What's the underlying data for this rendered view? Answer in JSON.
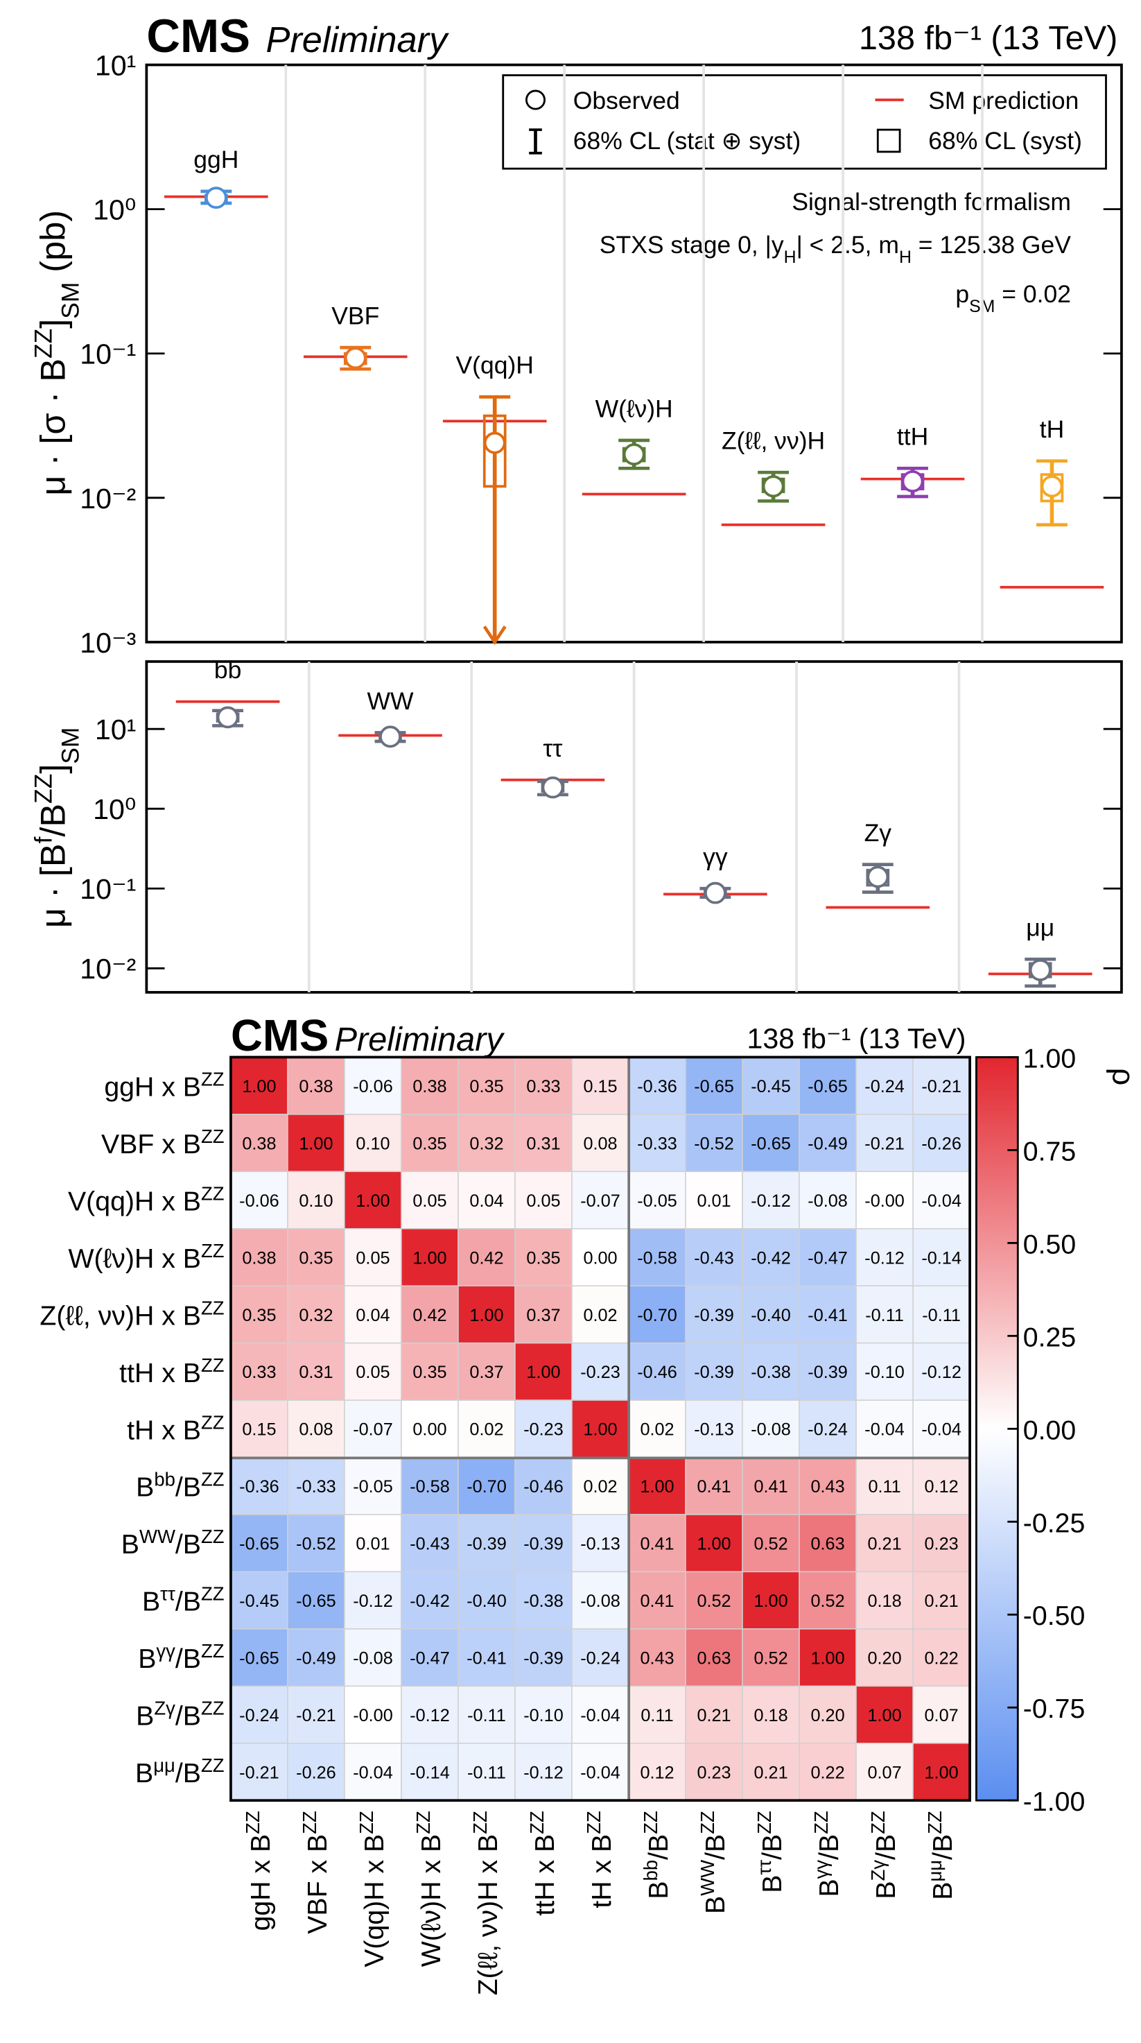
{
  "chart_data": [
    {
      "type": "errorbar",
      "experiment": "CMS",
      "status": "Preliminary",
      "lumi": "138 fb⁻¹ (13 TeV)",
      "ylabel": [
        "μ · [σ · B",
        "ZZ",
        "]",
        "SM",
        " (pb)"
      ],
      "log_y": true,
      "grid": true,
      "ylim": [
        0.001,
        10
      ],
      "yticks": [
        {
          "value": 0.001,
          "label": "10⁻³"
        },
        {
          "value": 0.01,
          "label": "10⁻²"
        },
        {
          "value": 0.1,
          "label": "10⁻¹"
        },
        {
          "value": 1,
          "label": "10⁰"
        },
        {
          "value": 10,
          "label": "10¹"
        }
      ],
      "categories": [
        "ggH",
        "VBF",
        "V(qq)H",
        "W(ℓν)H",
        "Z(ℓℓ, νν)H",
        "ttH",
        "tH"
      ],
      "colors": [
        "#4a8fd8",
        "#e8731f",
        "#e06a10",
        "#5a7a3a",
        "#5a7a3a",
        "#8e3fb0",
        "#f5a623"
      ],
      "values": [
        1.2,
        0.093,
        0.024,
        0.02,
        0.012,
        0.013,
        0.012
      ],
      "lower": [
        1.1,
        0.078,
        null,
        0.016,
        0.0095,
        0.0102,
        0.0065
      ],
      "upper": [
        1.33,
        0.11,
        0.05,
        0.025,
        0.015,
        0.016,
        0.018
      ],
      "syst_lower": [
        1.15,
        0.085,
        0.012,
        0.018,
        0.011,
        0.0115,
        0.0095
      ],
      "syst_upper": [
        1.25,
        0.1,
        0.037,
        0.022,
        0.0135,
        0.0145,
        0.0145
      ],
      "sm": [
        1.22,
        0.095,
        0.034,
        0.0106,
        0.0065,
        0.0135,
        0.0024
      ],
      "sm_color": "#e8302a",
      "legend": {
        "observed": "Observed",
        "total": "68% CL (stat ⊕ syst)",
        "sm": "SM prediction",
        "syst": "68% CL (syst)"
      },
      "annotations": [
        [
          "Signal-strength formalism"
        ],
        [
          "STXS stage 0, |y",
          "H",
          "| < 2.5, m",
          "H",
          " = 125.38 GeV"
        ],
        [
          "p",
          "SM",
          " = 0.02"
        ]
      ]
    },
    {
      "type": "errorbar",
      "ylabel": [
        "μ · [B",
        "f",
        "/B",
        "ZZ",
        "]",
        "SM"
      ],
      "log_y": true,
      "grid": true,
      "ylim": [
        0.005,
        70
      ],
      "yticks": [
        {
          "value": 0.01,
          "label": "10⁻²"
        },
        {
          "value": 0.1,
          "label": "10⁻¹"
        },
        {
          "value": 1,
          "label": "10⁰"
        },
        {
          "value": 10,
          "label": "10¹"
        }
      ],
      "categories": [
        "bb",
        "WW",
        "ττ",
        "γγ",
        "Zγ",
        "μμ"
      ],
      "colors": [
        "#6a7080",
        "#6a7080",
        "#6a7080",
        "#6a7080",
        "#6a7080",
        "#6a7080"
      ],
      "values": [
        14,
        8,
        1.85,
        0.088,
        0.14,
        0.0095
      ],
      "lower": [
        11,
        7,
        1.5,
        0.078,
        0.09,
        0.006
      ],
      "upper": [
        17,
        9,
        2.2,
        0.1,
        0.2,
        0.013
      ],
      "syst_lower": [
        12.5,
        7.5,
        1.65,
        0.083,
        0.11,
        0.0078
      ],
      "syst_upper": [
        15.5,
        8.5,
        2.05,
        0.094,
        0.17,
        0.0115
      ],
      "sm": [
        22,
        8.3,
        2.3,
        0.085,
        0.058,
        0.0085
      ],
      "sm_color": "#e8302a"
    },
    {
      "type": "heatmap",
      "experiment": "CMS",
      "status": "Preliminary",
      "lumi": "138 fb⁻¹ (13 TeV)",
      "labels": [
        [
          "ggH x B",
          "ZZ"
        ],
        [
          "VBF x B",
          "ZZ"
        ],
        [
          "V(qq)H x B",
          "ZZ"
        ],
        [
          "W(ℓν)H x B",
          "ZZ"
        ],
        [
          "Z(ℓℓ, νν)H x B",
          "ZZ"
        ],
        [
          "ttH x B",
          "ZZ"
        ],
        [
          "tH x B",
          "ZZ"
        ],
        [
          "B",
          "bb",
          "/B",
          "ZZ"
        ],
        [
          "B",
          "WW",
          "/B",
          "ZZ"
        ],
        [
          "B",
          "ττ",
          "/B",
          "ZZ"
        ],
        [
          "B",
          "γγ",
          "/B",
          "ZZ"
        ],
        [
          "B",
          "Zγ",
          "/B",
          "ZZ"
        ],
        [
          "B",
          "μμ",
          "/B",
          "ZZ"
        ]
      ],
      "values": [
        [
          1,
          0.38,
          -0.06,
          0.38,
          0.35,
          0.33,
          0.15,
          -0.36,
          -0.65,
          -0.45,
          -0.65,
          -0.24,
          -0.21
        ],
        [
          0.38,
          1,
          0.1,
          0.35,
          0.32,
          0.31,
          0.08,
          -0.33,
          -0.52,
          -0.65,
          -0.49,
          -0.21,
          -0.26
        ],
        [
          -0.06,
          0.1,
          1,
          0.05,
          0.04,
          0.05,
          -0.07,
          -0.05,
          0.01,
          -0.12,
          -0.08,
          0,
          -0.04
        ],
        [
          0.38,
          0.35,
          0.05,
          1,
          0.42,
          0.35,
          0,
          -0.58,
          -0.43,
          -0.42,
          -0.47,
          -0.12,
          -0.14
        ],
        [
          0.35,
          0.32,
          0.04,
          0.42,
          1,
          0.37,
          0.02,
          -0.7,
          -0.39,
          -0.4,
          -0.41,
          -0.11,
          -0.11
        ],
        [
          0.33,
          0.31,
          0.05,
          0.35,
          0.37,
          1,
          -0.23,
          -0.46,
          -0.39,
          -0.38,
          -0.39,
          -0.1,
          -0.12
        ],
        [
          0.15,
          0.08,
          -0.07,
          0,
          0.02,
          -0.23,
          1,
          0.02,
          -0.13,
          -0.08,
          -0.24,
          -0.04,
          -0.04
        ],
        [
          -0.36,
          -0.33,
          -0.05,
          -0.58,
          -0.7,
          -0.46,
          0.02,
          1,
          0.41,
          0.41,
          0.43,
          0.11,
          0.12
        ],
        [
          -0.65,
          -0.52,
          0.01,
          -0.43,
          -0.39,
          -0.39,
          -0.13,
          0.41,
          1,
          0.52,
          0.63,
          0.21,
          0.23
        ],
        [
          -0.45,
          -0.65,
          -0.12,
          -0.42,
          -0.4,
          -0.38,
          -0.08,
          0.41,
          0.52,
          1,
          0.52,
          0.18,
          0.21
        ],
        [
          -0.65,
          -0.49,
          -0.08,
          -0.47,
          -0.41,
          -0.39,
          -0.24,
          0.43,
          0.63,
          0.52,
          1,
          0.2,
          0.22
        ],
        [
          -0.24,
          -0.21,
          0,
          -0.12,
          -0.11,
          -0.1,
          -0.04,
          0.11,
          0.21,
          0.18,
          0.2,
          1,
          0.07
        ],
        [
          -0.21,
          -0.26,
          -0.04,
          -0.14,
          -0.11,
          -0.12,
          -0.04,
          0.12,
          0.23,
          0.21,
          0.22,
          0.07,
          1
        ]
      ],
      "value_labels": [
        [
          "1.00",
          "0.38",
          "-0.06",
          "0.38",
          "0.35",
          "0.33",
          "0.15",
          "-0.36",
          "-0.65",
          "-0.45",
          "-0.65",
          "-0.24",
          "-0.21"
        ],
        [
          "0.38",
          "1.00",
          "0.10",
          "0.35",
          "0.32",
          "0.31",
          "0.08",
          "-0.33",
          "-0.52",
          "-0.65",
          "-0.49",
          "-0.21",
          "-0.26"
        ],
        [
          "-0.06",
          "0.10",
          "1.00",
          "0.05",
          "0.04",
          "0.05",
          "-0.07",
          "-0.05",
          "0.01",
          "-0.12",
          "-0.08",
          "-0.00",
          "-0.04"
        ],
        [
          "0.38",
          "0.35",
          "0.05",
          "1.00",
          "0.42",
          "0.35",
          "0.00",
          "-0.58",
          "-0.43",
          "-0.42",
          "-0.47",
          "-0.12",
          "-0.14"
        ],
        [
          "0.35",
          "0.32",
          "0.04",
          "0.42",
          "1.00",
          "0.37",
          "0.02",
          "-0.70",
          "-0.39",
          "-0.40",
          "-0.41",
          "-0.11",
          "-0.11"
        ],
        [
          "0.33",
          "0.31",
          "0.05",
          "0.35",
          "0.37",
          "1.00",
          "-0.23",
          "-0.46",
          "-0.39",
          "-0.38",
          "-0.39",
          "-0.10",
          "-0.12"
        ],
        [
          "0.15",
          "0.08",
          "-0.07",
          "0.00",
          "0.02",
          "-0.23",
          "1.00",
          "0.02",
          "-0.13",
          "-0.08",
          "-0.24",
          "-0.04",
          "-0.04"
        ],
        [
          "-0.36",
          "-0.33",
          "-0.05",
          "-0.58",
          "-0.70",
          "-0.46",
          "0.02",
          "1.00",
          "0.41",
          "0.41",
          "0.43",
          "0.11",
          "0.12"
        ],
        [
          "-0.65",
          "-0.52",
          "0.01",
          "-0.43",
          "-0.39",
          "-0.39",
          "-0.13",
          "0.41",
          "1.00",
          "0.52",
          "0.63",
          "0.21",
          "0.23"
        ],
        [
          "-0.45",
          "-0.65",
          "-0.12",
          "-0.42",
          "-0.40",
          "-0.38",
          "-0.08",
          "0.41",
          "0.52",
          "1.00",
          "0.52",
          "0.18",
          "0.21"
        ],
        [
          "-0.65",
          "-0.49",
          "-0.08",
          "-0.47",
          "-0.41",
          "-0.39",
          "-0.24",
          "0.43",
          "0.63",
          "0.52",
          "1.00",
          "0.20",
          "0.22"
        ],
        [
          "-0.24",
          "-0.21",
          "-0.00",
          "-0.12",
          "-0.11",
          "-0.10",
          "-0.04",
          "0.11",
          "0.21",
          "0.18",
          "0.20",
          "1.00",
          "0.07"
        ],
        [
          "-0.21",
          "-0.26",
          "-0.04",
          "-0.14",
          "-0.11",
          "-0.12",
          "-0.04",
          "0.12",
          "0.23",
          "0.21",
          "0.22",
          "0.07",
          "1.00"
        ]
      ],
      "zlim": [
        -1,
        1
      ],
      "zticks": [
        {
          "value": 1,
          "label": "1.00"
        },
        {
          "value": 0.75,
          "label": "0.75"
        },
        {
          "value": 0.5,
          "label": "0.50"
        },
        {
          "value": 0.25,
          "label": "0.25"
        },
        {
          "value": 0,
          "label": "0.00"
        },
        {
          "value": -0.25,
          "label": "-0.25"
        },
        {
          "value": -0.5,
          "label": "-0.50"
        },
        {
          "value": -0.75,
          "label": "-0.75"
        },
        {
          "value": -1,
          "label": "-1.00"
        }
      ],
      "zlabel": "ρ",
      "cmap": [
        "#5b8ef0",
        "#ffffff",
        "#e2262f"
      ]
    }
  ]
}
